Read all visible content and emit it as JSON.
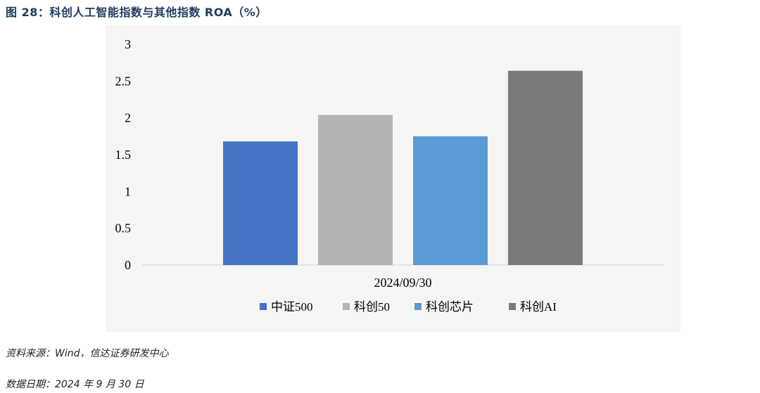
{
  "figure": {
    "title": "图 28：科创人工智能指数与其他指数 ROA（%）",
    "source": "资料来源：Wind，信达证券研发中心",
    "date": "数据日期：2024 年 9 月 30 日"
  },
  "chart_data": {
    "type": "bar",
    "categories": [
      "2024/09/30"
    ],
    "series": [
      {
        "name": "中证500",
        "values": [
          1.68
        ],
        "color": "#4472c4"
      },
      {
        "name": "科创50",
        "values": [
          2.04
        ],
        "color": "#b4b4b4"
      },
      {
        "name": "科创芯片",
        "values": [
          1.75
        ],
        "color": "#5b9bd5"
      },
      {
        "name": "科创AI",
        "values": [
          2.64
        ],
        "color": "#7a7a7a"
      }
    ],
    "y_ticks": [
      "0",
      "0.5",
      "1",
      "1.5",
      "2",
      "2.5",
      "3"
    ],
    "ylim": [
      0,
      3
    ],
    "grid": false,
    "legend_position": "bottom"
  }
}
